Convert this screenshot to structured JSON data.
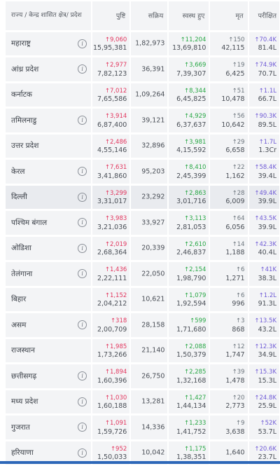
{
  "header": {
    "state": "राज्य / केन्द्र शासित क्षेत्र/ प्रदेश",
    "confirmed": "पुष्टि",
    "active": "सक्रिय",
    "recovered": "स्वस्थ हुए",
    "deceased": "मृत",
    "tested": "परीक्षित"
  },
  "rows": [
    {
      "name": "महाराष्ट्र",
      "info": true,
      "conf_delta": "↑9,060",
      "confirmed": "15,95,381",
      "active": "1,82,973",
      "rec_delta": "↑11,204",
      "recovered": "13,69,810",
      "dec_delta": "↑150",
      "deceased": "42,115",
      "test_delta": "↑70.4K",
      "tested": "81.4L"
    },
    {
      "name": "आंध्र प्रदेश",
      "info": true,
      "conf_delta": "↑2,977",
      "confirmed": "7,82,123",
      "active": "36,391",
      "rec_delta": "↑3,669",
      "recovered": "7,39,307",
      "dec_delta": "↑19",
      "deceased": "6,425",
      "test_delta": "↑74.9K",
      "tested": "70.7L"
    },
    {
      "name": "कर्नाटक",
      "info": false,
      "conf_delta": "↑7,012",
      "confirmed": "7,65,586",
      "active": "1,09,264",
      "rec_delta": "↑8,344",
      "recovered": "6,45,825",
      "dec_delta": "↑51",
      "deceased": "10,478",
      "test_delta": "↑1.1L",
      "tested": "66.7L"
    },
    {
      "name": "तमिलनाडु",
      "info": true,
      "conf_delta": "↑3,914",
      "confirmed": "6,87,400",
      "active": "39,121",
      "rec_delta": "↑4,929",
      "recovered": "6,37,637",
      "dec_delta": "↑56",
      "deceased": "10,642",
      "test_delta": "↑90.3K",
      "tested": "89.5L"
    },
    {
      "name": "उत्तर प्रदेश",
      "info": false,
      "conf_delta": "↑2,486",
      "confirmed": "4,55,146",
      "active": "32,896",
      "rec_delta": "↑3,981",
      "recovered": "4,15,592",
      "dec_delta": "↑29",
      "deceased": "6,658",
      "test_delta": "↑1.7L",
      "tested": "1.3Cr"
    },
    {
      "name": "केरल",
      "info": true,
      "conf_delta": "↑7,631",
      "confirmed": "3,41,860",
      "active": "95,203",
      "rec_delta": "↑8,410",
      "recovered": "2,45,399",
      "dec_delta": "↑22",
      "deceased": "1,162",
      "test_delta": "↑58.4K",
      "tested": "39.4L"
    },
    {
      "name": "दिल्ली",
      "info": true,
      "highlight": true,
      "conf_delta": "↑3,299",
      "confirmed": "3,31,017",
      "active": "23,292",
      "rec_delta": "↑2,863",
      "recovered": "3,01,716",
      "dec_delta": "↑28",
      "deceased": "6,009",
      "test_delta": "↑49.4K",
      "tested": "39.9L"
    },
    {
      "name": "पश्चिम बंगाल",
      "info": true,
      "conf_delta": "↑3,983",
      "confirmed": "3,21,036",
      "active": "33,927",
      "rec_delta": "↑3,113",
      "recovered": "2,81,053",
      "dec_delta": "↑64",
      "deceased": "6,056",
      "test_delta": "↑43.5K",
      "tested": "39.9L"
    },
    {
      "name": "ओडिशा",
      "info": true,
      "conf_delta": "↑2,019",
      "confirmed": "2,68,364",
      "active": "20,339",
      "rec_delta": "↑2,610",
      "recovered": "2,46,837",
      "dec_delta": "↑14",
      "deceased": "1,188",
      "test_delta": "↑42.3K",
      "tested": "40.4L"
    },
    {
      "name": "तेलंगाना",
      "info": true,
      "conf_delta": "↑1,436",
      "confirmed": "2,22,111",
      "active": "22,050",
      "rec_delta": "↑2,154",
      "recovered": "1,98,790",
      "dec_delta": "↑6",
      "deceased": "1,271",
      "test_delta": "↑41K",
      "tested": "38.3L"
    },
    {
      "name": "बिहार",
      "info": false,
      "conf_delta": "↑1,152",
      "confirmed": "2,04,212",
      "active": "10,621",
      "rec_delta": "↑1,079",
      "recovered": "1,92,594",
      "dec_delta": "↑6",
      "deceased": "996",
      "test_delta": "↑1.2L",
      "tested": "91.3L"
    },
    {
      "name": "असम",
      "info": true,
      "conf_delta": "↑318",
      "confirmed": "2,00,709",
      "active": "28,158",
      "rec_delta": "↑599",
      "recovered": "1,71,680",
      "dec_delta": "↑3",
      "deceased": "868",
      "test_delta": "↑13.5K",
      "tested": "43.2L"
    },
    {
      "name": "राजस्थान",
      "info": false,
      "conf_delta": "↑1,985",
      "confirmed": "1,73,266",
      "active": "21,140",
      "rec_delta": "↑2,088",
      "recovered": "1,50,379",
      "dec_delta": "↑12",
      "deceased": "1,747",
      "test_delta": "↑12.3K",
      "tested": "34.9L"
    },
    {
      "name": "छत्तीसगढ़",
      "info": true,
      "conf_delta": "↑1,894",
      "confirmed": "1,60,396",
      "active": "26,750",
      "rec_delta": "↑2,285",
      "recovered": "1,32,168",
      "dec_delta": "↑39",
      "deceased": "1,478",
      "test_delta": "↑15.3K",
      "tested": "15.3L"
    },
    {
      "name": "मध्य प्रदेश",
      "info": true,
      "conf_delta": "↑1,030",
      "confirmed": "1,60,188",
      "active": "13,281",
      "rec_delta": "↑1,427",
      "recovered": "1,44,134",
      "dec_delta": "↑20",
      "deceased": "2,773",
      "test_delta": "↑24.8K",
      "tested": "25.9L"
    },
    {
      "name": "गुजरात",
      "info": true,
      "conf_delta": "↑1,091",
      "confirmed": "1,59,726",
      "active": "14,336",
      "rec_delta": "↑1,233",
      "recovered": "1,41,752",
      "dec_delta": "↑9",
      "deceased": "3,638",
      "test_delta": "↑52K",
      "tested": "53.7L"
    },
    {
      "name": "हरियाणा",
      "info": true,
      "conf_delta": "↑952",
      "confirmed": "1,50,033",
      "active": "10,042",
      "rec_delta": "↑1,175",
      "recovered": "1,38,351",
      "dec_delta": "",
      "deceased": "1,640",
      "test_delta": "↑20.6K",
      "tested": "23.7L"
    }
  ]
}
